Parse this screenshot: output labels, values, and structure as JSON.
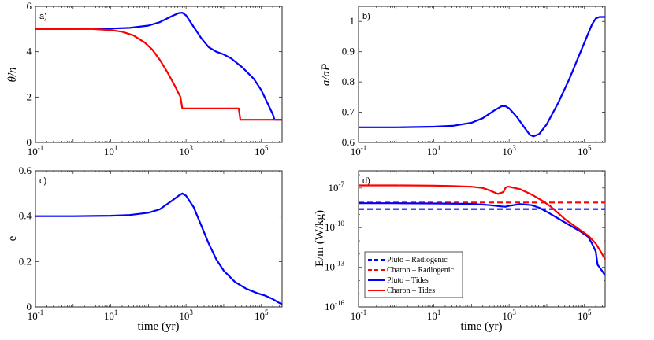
{
  "chart_data": [
    {
      "type": "line",
      "panel": "a)",
      "ylabel": "θ̇/n",
      "xlabel": "",
      "xscale": "log",
      "xlim_exp": [
        -1,
        5.55
      ],
      "ylim": [
        0,
        6
      ],
      "yticks": [
        0,
        2,
        4,
        6
      ],
      "xticks": [
        {
          "base": "10",
          "exp": "-1",
          "v": -1
        },
        {
          "base": "10",
          "exp": "1",
          "v": 1
        },
        {
          "base": "10",
          "exp": "3",
          "v": 3
        },
        {
          "base": "10",
          "exp": "5",
          "v": 5
        }
      ],
      "series": [
        {
          "name": "Pluto",
          "color": "#0000ff",
          "x": [
            -1,
            0,
            1,
            1.5,
            2,
            2.3,
            2.6,
            2.8,
            2.9,
            3.0,
            3.2,
            3.4,
            3.6,
            3.8,
            4.0,
            4.2,
            4.5,
            4.8,
            5.0,
            5.2,
            5.3,
            5.35,
            5.4,
            5.55
          ],
          "y": [
            5.0,
            5.0,
            5.02,
            5.05,
            5.15,
            5.3,
            5.55,
            5.7,
            5.72,
            5.6,
            5.1,
            4.6,
            4.2,
            4.0,
            3.88,
            3.7,
            3.3,
            2.8,
            2.3,
            1.6,
            1.25,
            1.0,
            1.0,
            1.0
          ]
        },
        {
          "name": "Charon",
          "color": "#ff0000",
          "x": [
            -1,
            0,
            0.5,
            1,
            1.3,
            1.6,
            1.9,
            2.1,
            2.3,
            2.5,
            2.7,
            2.85,
            2.9,
            2.92,
            3.0,
            3.5,
            4.0,
            4.4,
            4.44,
            4.5,
            5.0,
            5.55
          ],
          "y": [
            5.0,
            5.0,
            5.0,
            4.95,
            4.88,
            4.72,
            4.4,
            4.1,
            3.65,
            3.1,
            2.5,
            2.0,
            1.5,
            1.5,
            1.5,
            1.5,
            1.5,
            1.5,
            1.0,
            1.0,
            1.0,
            1.0
          ]
        }
      ]
    },
    {
      "type": "line",
      "panel": "b)",
      "ylabel": "a/aP",
      "xlabel": "",
      "xscale": "log",
      "xlim_exp": [
        -1,
        5.55
      ],
      "ylim": [
        0.6,
        1.05
      ],
      "yticks": [
        0.6,
        0.7,
        0.8,
        0.9,
        1
      ],
      "ytick_labels": [
        "0.6",
        "0.7",
        "0.8",
        "0.9",
        "1"
      ],
      "xticks": [
        {
          "base": "10",
          "exp": "-1",
          "v": -1
        },
        {
          "base": "10",
          "exp": "1",
          "v": 1
        },
        {
          "base": "10",
          "exp": "3",
          "v": 3
        },
        {
          "base": "10",
          "exp": "5",
          "v": 5
        }
      ],
      "series": [
        {
          "name": "Pluto",
          "color": "#0000ff",
          "x": [
            -1,
            0,
            1,
            1.5,
            2,
            2.3,
            2.6,
            2.8,
            2.9,
            3.0,
            3.2,
            3.4,
            3.55,
            3.65,
            3.8,
            4.0,
            4.3,
            4.6,
            4.9,
            5.1,
            5.2,
            5.3,
            5.4,
            5.55
          ],
          "y": [
            0.65,
            0.65,
            0.652,
            0.655,
            0.665,
            0.68,
            0.705,
            0.72,
            0.72,
            0.713,
            0.685,
            0.65,
            0.625,
            0.62,
            0.628,
            0.66,
            0.73,
            0.81,
            0.9,
            0.96,
            0.99,
            1.01,
            1.015,
            1.015
          ]
        }
      ]
    },
    {
      "type": "line",
      "panel": "c)",
      "ylabel": "e",
      "xlabel": "time (yr)",
      "xscale": "log",
      "xlim_exp": [
        -1,
        5.55
      ],
      "ylim": [
        0,
        0.6
      ],
      "yticks": [
        0,
        0.2,
        0.4,
        0.6
      ],
      "ytick_labels": [
        "0",
        "0.2",
        "0.4",
        "0.6"
      ],
      "xticks": [
        {
          "base": "10",
          "exp": "-1",
          "v": -1
        },
        {
          "base": "10",
          "exp": "1",
          "v": 1
        },
        {
          "base": "10",
          "exp": "3",
          "v": 3
        },
        {
          "base": "10",
          "exp": "5",
          "v": 5
        }
      ],
      "series": [
        {
          "name": "Pluto",
          "color": "#0000ff",
          "x": [
            -1,
            0,
            1,
            1.5,
            2,
            2.3,
            2.6,
            2.8,
            2.9,
            3.0,
            3.2,
            3.4,
            3.6,
            3.8,
            4.0,
            4.3,
            4.6,
            4.9,
            5.1,
            5.3,
            5.45,
            5.55
          ],
          "y": [
            0.4,
            0.4,
            0.402,
            0.405,
            0.415,
            0.43,
            0.465,
            0.49,
            0.5,
            0.49,
            0.44,
            0.36,
            0.28,
            0.21,
            0.16,
            0.11,
            0.08,
            0.06,
            0.05,
            0.035,
            0.02,
            0.012
          ]
        }
      ]
    },
    {
      "type": "line",
      "panel": "d)",
      "ylabel": "E/m (W/kg)",
      "xlabel": "time (yr)",
      "xscale": "log",
      "yscale": "log",
      "xlim_exp": [
        -1,
        5.55
      ],
      "ylim_exp": [
        -16,
        -5.7
      ],
      "yticks_exp": [
        -16,
        -13,
        -10,
        -7
      ],
      "xticks": [
        {
          "base": "10",
          "exp": "-1",
          "v": -1
        },
        {
          "base": "10",
          "exp": "1",
          "v": 1
        },
        {
          "base": "10",
          "exp": "3",
          "v": 3
        },
        {
          "base": "10",
          "exp": "5",
          "v": 5
        }
      ],
      "yticks": [
        {
          "base": "10",
          "exp": "-16",
          "v": -16
        },
        {
          "base": "10",
          "exp": "-13",
          "v": -13
        },
        {
          "base": "10",
          "exp": "-10",
          "v": -10
        },
        {
          "base": "10",
          "exp": "-7",
          "v": -7
        }
      ],
      "legend": {
        "placement": "lower-left",
        "entries": [
          {
            "label": "Pluto – Radiogenic",
            "color": "#0000ff",
            "style": "dashed"
          },
          {
            "label": "Charon – Radiogenic",
            "color": "#ff0000",
            "style": "dashed"
          },
          {
            "label": "Pluto – Tides",
            "color": "#0000ff",
            "style": "solid"
          },
          {
            "label": "Charon – Tides",
            "color": "#ff0000",
            "style": "solid"
          }
        ]
      },
      "series": [
        {
          "name": "Pluto – Radiogenic",
          "color": "#0000ff",
          "style": "dashed",
          "x": [
            -1,
            5.55
          ],
          "y": [
            -8.6,
            -8.6
          ]
        },
        {
          "name": "Charon – Radiogenic",
          "color": "#ff0000",
          "style": "dashed",
          "x": [
            -1,
            5.55
          ],
          "y": [
            -8.1,
            -8.1
          ]
        },
        {
          "name": "Pluto – Tides",
          "color": "#0000ff",
          "style": "solid",
          "x": [
            -1,
            0,
            1,
            2,
            2.5,
            2.8,
            2.9,
            3.0,
            3.3,
            3.6,
            3.8,
            4.0,
            4.3,
            4.6,
            4.9,
            5.1,
            5.2,
            5.3,
            5.35,
            5.4,
            5.55
          ],
          "y": [
            -8.15,
            -8.15,
            -8.17,
            -8.2,
            -8.3,
            -8.4,
            -8.42,
            -8.35,
            -8.22,
            -8.3,
            -8.5,
            -8.8,
            -9.3,
            -9.8,
            -10.3,
            -10.7,
            -11.2,
            -11.8,
            -12.8,
            -13.0,
            -13.6
          ]
        },
        {
          "name": "Charon – Tides",
          "color": "#ff0000",
          "style": "solid",
          "x": [
            -1,
            0,
            1,
            1.5,
            2,
            2.3,
            2.5,
            2.7,
            2.85,
            2.9,
            2.95,
            3.0,
            3.3,
            3.6,
            3.9,
            4.1,
            4.3,
            4.5,
            4.7,
            4.9,
            5.1,
            5.3,
            5.45,
            5.55
          ],
          "y": [
            -6.8,
            -6.8,
            -6.82,
            -6.85,
            -6.9,
            -7.0,
            -7.2,
            -7.45,
            -7.3,
            -7.0,
            -6.9,
            -6.9,
            -7.1,
            -7.5,
            -8.0,
            -8.4,
            -8.9,
            -9.4,
            -9.8,
            -10.2,
            -10.6,
            -11.2,
            -11.9,
            -12.4
          ]
        }
      ]
    }
  ]
}
